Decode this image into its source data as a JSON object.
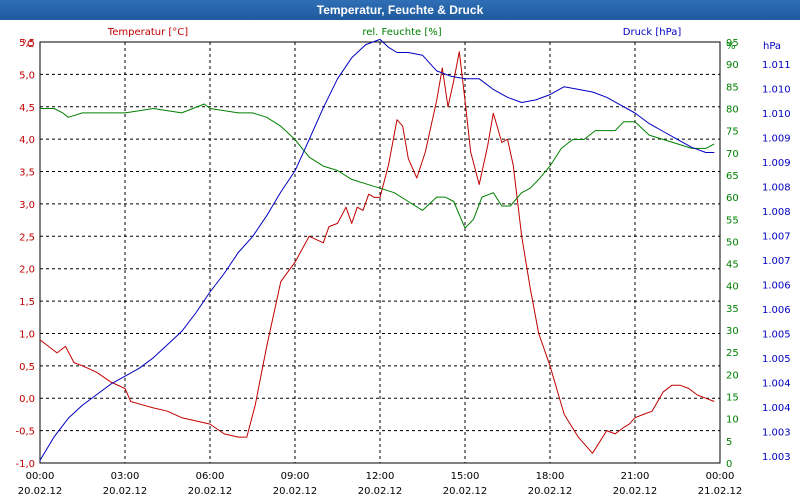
{
  "window": {
    "title": "Temperatur, Feuchte & Druck"
  },
  "chart_data": {
    "type": "line",
    "title": "Temperatur, Feuchte & Druck",
    "grid": true,
    "x_ticks": [
      {
        "time": "00:00",
        "date": "20.02.12"
      },
      {
        "time": "03:00",
        "date": "20.02.12"
      },
      {
        "time": "06:00",
        "date": "20.02.12"
      },
      {
        "time": "09:00",
        "date": "20.02.12"
      },
      {
        "time": "12:00",
        "date": "20.02.12"
      },
      {
        "time": "15:00",
        "date": "20.02.12"
      },
      {
        "time": "18:00",
        "date": "20.02.12"
      },
      {
        "time": "21:00",
        "date": "20.02.12"
      },
      {
        "time": "00:00",
        "date": "21.02.12"
      }
    ],
    "x_range_hours": [
      0,
      24
    ],
    "axes": {
      "temperature": {
        "label": "Temperatur [°C]",
        "unit": "°C",
        "color": "#c00000",
        "range": [
          -1.0,
          5.5
        ],
        "ticks": [
          "-1,0",
          "-0,5",
          "0,0",
          "0,5",
          "1,0",
          "1,5",
          "2,0",
          "2,5",
          "3,0",
          "3,5",
          "4,0",
          "4,5",
          "5,0",
          "5,5"
        ]
      },
      "humidity": {
        "label": "rel. Feuchte [%]",
        "unit": "%",
        "color": "#008000",
        "range": [
          0,
          95
        ],
        "ticks": [
          "0",
          "5",
          "10",
          "15",
          "20",
          "25",
          "30",
          "35",
          "40",
          "45",
          "50",
          "55",
          "60",
          "65",
          "70",
          "75",
          "80",
          "85",
          "90",
          "95"
        ]
      },
      "pressure": {
        "label": "Druck [hPa]",
        "unit": "hPa",
        "color": "#0000c0",
        "range": [
          1003.0,
          1011.0
        ],
        "ticks": [
          "1.003",
          "1.003",
          "1.004",
          "1.004",
          "1.005",
          "1.005",
          "1.006",
          "1.006",
          "1.007",
          "1.007",
          "1.008",
          "1.008",
          "1.009",
          "1.009",
          "1.010",
          "1.010",
          "1.011"
        ]
      }
    },
    "series": [
      {
        "name": "Temperatur",
        "axis": "temperature",
        "color": "#c00000",
        "x": [
          0,
          0.3,
          0.6,
          0.9,
          1.2,
          1.5,
          2.0,
          2.5,
          3.0,
          3.2,
          3.6,
          4.0,
          4.5,
          5.0,
          5.5,
          6.0,
          6.5,
          7.0,
          7.3,
          7.6,
          8.0,
          8.5,
          9.0,
          9.5,
          10.0,
          10.2,
          10.5,
          10.8,
          11.0,
          11.2,
          11.4,
          11.6,
          11.8,
          12.0,
          12.3,
          12.6,
          12.8,
          13.0,
          13.3,
          13.6,
          13.8,
          14.0,
          14.2,
          14.4,
          14.6,
          14.8,
          15.0,
          15.2,
          15.5,
          15.8,
          16.0,
          16.3,
          16.5,
          16.7,
          17.0,
          17.3,
          17.6,
          18.0,
          18.5,
          19.0,
          19.5,
          20.0,
          20.3,
          20.6,
          20.8,
          21.0,
          21.3,
          21.6,
          22.0,
          22.3,
          22.6,
          22.9,
          23.2,
          23.5,
          23.8
        ],
        "values": [
          0.9,
          0.8,
          0.7,
          0.8,
          0.55,
          0.5,
          0.4,
          0.25,
          0.15,
          -0.05,
          -0.1,
          -0.15,
          -0.2,
          -0.3,
          -0.35,
          -0.4,
          -0.55,
          -0.6,
          -0.6,
          -0.1,
          0.8,
          1.8,
          2.1,
          2.5,
          2.4,
          2.65,
          2.7,
          2.95,
          2.7,
          2.95,
          2.9,
          3.15,
          3.1,
          3.1,
          3.6,
          4.3,
          4.2,
          3.7,
          3.4,
          3.8,
          4.2,
          4.6,
          5.1,
          4.5,
          4.9,
          5.35,
          4.6,
          3.8,
          3.3,
          3.9,
          4.4,
          3.95,
          4.0,
          3.6,
          2.5,
          1.7,
          1.0,
          0.5,
          -0.25,
          -0.6,
          -0.85,
          -0.5,
          -0.55,
          -0.45,
          -0.4,
          -0.3,
          -0.25,
          -0.2,
          0.1,
          0.2,
          0.2,
          0.15,
          0.05,
          0.0,
          -0.05
        ]
      },
      {
        "name": "rel. Feuchte",
        "axis": "humidity",
        "color": "#008000",
        "x": [
          0,
          0.5,
          0.8,
          1.0,
          1.5,
          2.0,
          3.0,
          4.0,
          5.0,
          5.8,
          6.0,
          7.0,
          7.5,
          8.0,
          8.5,
          9.0,
          9.5,
          10.0,
          10.5,
          11.0,
          11.5,
          12.0,
          12.5,
          13.0,
          13.5,
          14.0,
          14.3,
          14.6,
          15.0,
          15.3,
          15.6,
          16.0,
          16.3,
          16.6,
          17.0,
          17.3,
          17.6,
          18.0,
          18.4,
          18.8,
          19.2,
          19.6,
          20.0,
          20.3,
          20.6,
          21.0,
          21.5,
          22.0,
          22.5,
          23.0,
          23.5,
          23.8
        ],
        "values": [
          80,
          80,
          79,
          78,
          79,
          79,
          79,
          80,
          79,
          81,
          80,
          79,
          79,
          78,
          76,
          73,
          69,
          67,
          66,
          64,
          63,
          62,
          61,
          59,
          57,
          60,
          60,
          59,
          53,
          55,
          60,
          61,
          58,
          58,
          61,
          62,
          64,
          67,
          71,
          73,
          73,
          75,
          75,
          75,
          77,
          77,
          74,
          73,
          72,
          71,
          71,
          72
        ]
      },
      {
        "name": "Druck",
        "axis": "pressure",
        "color": "#0000c0",
        "x": [
          0,
          0.5,
          1.0,
          1.5,
          2.0,
          2.5,
          3.0,
          3.5,
          4.0,
          4.5,
          5.0,
          5.5,
          6.0,
          6.5,
          7.0,
          7.5,
          8.0,
          8.5,
          9.0,
          9.5,
          10.0,
          10.5,
          11.0,
          11.5,
          12.0,
          12.3,
          12.6,
          13.0,
          13.5,
          14.0,
          14.5,
          15.0,
          15.5,
          16.0,
          16.5,
          17.0,
          17.5,
          18.0,
          18.5,
          19.0,
          19.5,
          20.0,
          20.5,
          21.0,
          21.5,
          22.0,
          22.5,
          23.0,
          23.5,
          23.8
        ],
        "values": [
          1003.05,
          1003.5,
          1003.85,
          1004.1,
          1004.3,
          1004.5,
          1004.65,
          1004.8,
          1005.0,
          1005.25,
          1005.5,
          1005.85,
          1006.25,
          1006.6,
          1007.0,
          1007.3,
          1007.7,
          1008.15,
          1008.55,
          1009.15,
          1009.75,
          1010.3,
          1010.7,
          1010.95,
          1011.05,
          1010.9,
          1010.8,
          1010.8,
          1010.75,
          1010.45,
          1010.35,
          1010.3,
          1010.3,
          1010.1,
          1009.95,
          1009.85,
          1009.9,
          1010.0,
          1010.15,
          1010.1,
          1010.05,
          1009.95,
          1009.8,
          1009.65,
          1009.45,
          1009.3,
          1009.15,
          1009.0,
          1008.9,
          1008.9
        ]
      }
    ]
  }
}
